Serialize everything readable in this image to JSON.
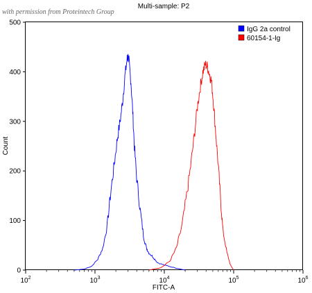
{
  "watermark": "with permission from Proteintech Group",
  "chart_data": {
    "type": "area",
    "title": "Multi-sample: P2",
    "xlabel": "FITC-A",
    "ylabel": "Count",
    "x_scale": "log10",
    "xlim": [
      100,
      1000000
    ],
    "ylim": [
      0,
      500
    ],
    "y_ticks": [
      0,
      100,
      200,
      300,
      400,
      500
    ],
    "x_ticks": [
      {
        "value": 100,
        "base": "10",
        "exp": "2"
      },
      {
        "value": 1000,
        "base": "10",
        "exp": "3"
      },
      {
        "value": 10000,
        "base": "10",
        "exp": "4"
      },
      {
        "value": 100000,
        "base": "10",
        "exp": "5"
      },
      {
        "value": 1000000,
        "base": "10",
        "exp": "6"
      }
    ],
    "grid": false,
    "legend_position": "top-right",
    "series": [
      {
        "name": "IgG 2a control",
        "color": "#0000ff",
        "x": [
          500,
          700,
          900,
          1100,
          1300,
          1500,
          1700,
          1900,
          2100,
          2300,
          2500,
          2700,
          2900,
          3000,
          3100,
          3300,
          3500,
          3700,
          4000,
          4500,
          5000,
          5500,
          6000,
          7000,
          8000,
          10000,
          13000,
          17000,
          20000
        ],
        "y": [
          0,
          2,
          8,
          22,
          45,
          90,
          160,
          215,
          265,
          300,
          340,
          390,
          425,
          430,
          420,
          380,
          320,
          250,
          185,
          120,
          70,
          45,
          35,
          25,
          15,
          10,
          6,
          2,
          0
        ]
      },
      {
        "name": "60154-1-Ig",
        "color": "#ff0000",
        "x": [
          6000,
          9000,
          12000,
          15000,
          18000,
          21000,
          24000,
          27000,
          30000,
          33000,
          36000,
          39000,
          42000,
          45000,
          48000,
          51000,
          55000,
          60000,
          65000,
          70000,
          80000,
          90000,
          100000
        ],
        "y": [
          0,
          5,
          18,
          45,
          90,
          150,
          210,
          270,
          330,
          370,
          400,
          415,
          410,
          395,
          380,
          340,
          280,
          210,
          140,
          80,
          35,
          10,
          0
        ]
      }
    ]
  }
}
